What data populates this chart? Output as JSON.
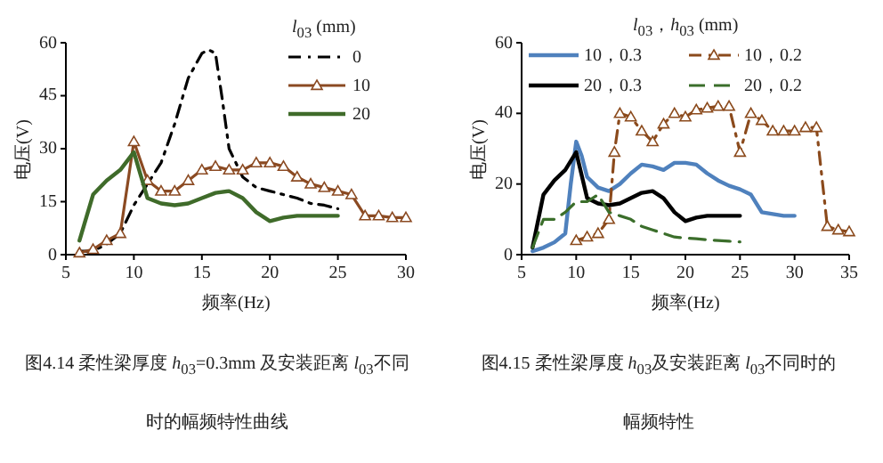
{
  "chart_data": [
    {
      "type": "line",
      "xlabel": "频率(Hz)",
      "ylabel": "电压(V)",
      "legend_title": "*l*$_{03}$ (mm)",
      "legend": "top right",
      "xlim": [
        5,
        30
      ],
      "xticks": [
        5,
        10,
        15,
        20,
        25,
        30
      ],
      "ylim": [
        0,
        60
      ],
      "yticks": [
        0,
        15,
        30,
        45,
        60
      ],
      "annotations": [
        "图4.14 柔性梁厚度 *h*$_{03}$=0.3mm 及安装距离 *l*$_{03}$不同时的幅频特性曲线"
      ],
      "series": [
        {
          "name": "0",
          "color": "#000000",
          "line_style": "dashdot",
          "x": [
            6,
            7,
            8,
            9,
            10,
            11,
            12,
            13,
            14,
            15,
            15.5,
            16,
            16.5,
            17,
            18,
            19,
            20,
            21,
            22,
            23,
            24,
            25
          ],
          "values": [
            1,
            1,
            3,
            6,
            14,
            20,
            26,
            37,
            50,
            57,
            58,
            57,
            44,
            30,
            22,
            19,
            18,
            17,
            16,
            14.5,
            14,
            13
          ]
        },
        {
          "name": "10",
          "color": "#8b4a22",
          "line_style": "solid",
          "marker": "triangle",
          "x": [
            6,
            7,
            8,
            9,
            10,
            11,
            12,
            13,
            14,
            15,
            16,
            17,
            18,
            19,
            20,
            21,
            22,
            23,
            24,
            25,
            26,
            27,
            28,
            29,
            30
          ],
          "values": [
            0.5,
            1.5,
            4,
            6,
            32,
            21,
            18,
            18,
            21,
            24,
            25,
            24,
            24,
            26,
            26,
            25,
            22,
            20,
            19,
            18,
            17,
            11,
            11,
            10.5,
            10.5
          ]
        },
        {
          "name": "20",
          "color": "#3f6b2a",
          "line_style": "solid",
          "x": [
            6,
            7,
            8,
            9,
            10,
            11,
            12,
            13,
            14,
            15,
            16,
            17,
            18,
            19,
            20,
            21,
            22,
            23,
            24,
            25
          ],
          "values": [
            4,
            17,
            21,
            24,
            29,
            16,
            14.5,
            14,
            14.5,
            16,
            17.5,
            18,
            16,
            12,
            9.5,
            10.5,
            11,
            11,
            11,
            11
          ]
        }
      ]
    },
    {
      "type": "line",
      "xlabel": "频率(Hz)",
      "ylabel": "电压(V)",
      "legend_title": "*l*$_{03}$，*h*$_{03}$ (mm)",
      "legend": "top",
      "xlim": [
        5,
        35
      ],
      "xticks": [
        5,
        10,
        15,
        20,
        25,
        30,
        35
      ],
      "ylim": [
        0,
        60
      ],
      "yticks": [
        0,
        20,
        40,
        60
      ],
      "annotations": [
        "图4.15 柔性梁厚度 *h*$_{03}$及安装距离 *l*$_{03}$不同时的幅频特性"
      ],
      "series": [
        {
          "name": "10，0.3",
          "color": "#4f81bd",
          "line_style": "solid",
          "x": [
            6,
            7,
            8,
            9,
            9.5,
            10,
            10.5,
            11,
            12,
            13,
            14,
            15,
            16,
            17,
            18,
            19,
            20,
            21,
            22,
            23,
            24,
            25,
            26,
            27,
            28,
            29,
            30
          ],
          "values": [
            1,
            2,
            3.5,
            6,
            20,
            32,
            28,
            22,
            19,
            18,
            20,
            23,
            25.5,
            25,
            24,
            26,
            26,
            25.5,
            23,
            21,
            19.5,
            18.5,
            17,
            12,
            11.5,
            11,
            11
          ]
        },
        {
          "name": "10，0.2",
          "color": "#8b4a1c",
          "line_style": "dashdot",
          "marker": "triangle",
          "x": [
            10,
            11,
            12,
            13,
            13.5,
            14,
            15,
            16,
            17,
            18,
            19,
            20,
            21,
            22,
            23,
            24,
            25,
            26,
            27,
            28,
            29,
            30,
            31,
            32,
            33,
            34,
            35
          ],
          "values": [
            4,
            5,
            6,
            10,
            29,
            40,
            39,
            35,
            32,
            37,
            40,
            39,
            41,
            41.5,
            42,
            42,
            29,
            40,
            38,
            35,
            35,
            35,
            36,
            36,
            8,
            7,
            6.5
          ]
        },
        {
          "name": "20，0.3",
          "color": "#000000",
          "line_style": "solid",
          "x": [
            6,
            7,
            8,
            9,
            10,
            11,
            12,
            13,
            14,
            15,
            16,
            17,
            18,
            19,
            20,
            21,
            22,
            23,
            24,
            25
          ],
          "values": [
            2,
            17,
            21,
            24,
            29,
            16,
            14.5,
            14,
            14.5,
            16,
            17.5,
            18,
            16,
            12,
            9.5,
            10.5,
            11,
            11,
            11,
            11
          ]
        },
        {
          "name": "20，0.2",
          "color": "#3b6e2b",
          "line_style": "dashed",
          "x": [
            6,
            7,
            8,
            9,
            10,
            11,
            12,
            13,
            14,
            15,
            16,
            17,
            18,
            19,
            20,
            21,
            22,
            23,
            24,
            25
          ],
          "values": [
            2,
            10,
            10,
            12,
            15,
            15,
            17,
            12,
            11,
            10,
            8,
            7,
            6,
            5,
            4.7,
            4.5,
            4.2,
            4,
            3.8,
            3.6
          ]
        }
      ]
    }
  ]
}
